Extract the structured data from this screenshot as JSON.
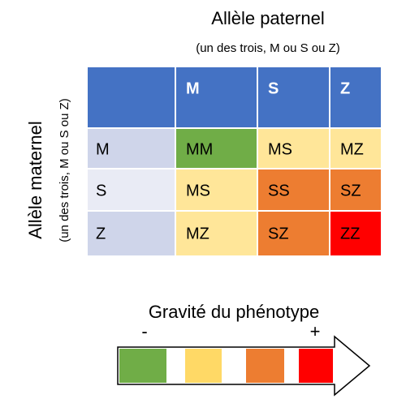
{
  "header": {
    "title": "Allèle paternel",
    "subtitle": "(un des trois, M ou S ou Z)"
  },
  "side": {
    "title": "Allèle maternel",
    "subtitle": "(un des trois, M ou S ou Z)"
  },
  "table": {
    "columns": [
      "M",
      "S",
      "Z"
    ],
    "rows": [
      [
        "M",
        "MM",
        "MS",
        "MZ"
      ],
      [
        "S",
        "MS",
        "SS",
        "SZ"
      ],
      [
        "Z",
        "MZ",
        "SZ",
        "ZZ"
      ]
    ]
  },
  "legend": {
    "title": "Gravité du phénotype",
    "low": "-",
    "high": "+"
  }
}
